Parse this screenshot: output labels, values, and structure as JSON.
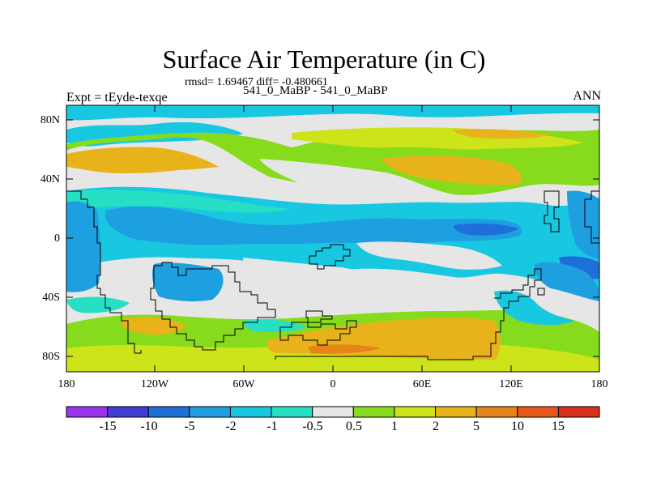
{
  "title": "Surface Air Temperature (in C)",
  "stats": "rmsd= 1.69467 diff= -0.480661",
  "experiment": "Expt = tEyde-texqe",
  "runs": "541_0_MaBP - 541_0_MaBP",
  "season": "ANN",
  "y_ticks": [
    "80N",
    "40N",
    "0",
    "40S",
    "80S"
  ],
  "x_ticks": [
    "180",
    "120W",
    "60W",
    "0",
    "60E",
    "120E",
    "180"
  ],
  "colorbar": {
    "labels": [
      "-15",
      "-10",
      "-5",
      "-2",
      "-1",
      "-0.5",
      "0.5",
      "1",
      "2",
      "5",
      "10",
      "15"
    ],
    "colors": [
      "#9933ee",
      "#3f3fd6",
      "#1f6fd9",
      "#1e9fe0",
      "#18c8e0",
      "#26dfc4",
      "#e6e6e6",
      "#86dc1c",
      "#cde41a",
      "#e8b21a",
      "#e6841a",
      "#e6581a",
      "#d8301a"
    ]
  },
  "map_colors": {
    "neutral": "#e6e6e6",
    "cool_light": "#26dfc4",
    "cool": "#18c8e0",
    "cool_mid": "#1e9fe0",
    "cool_deep": "#1f6fd9",
    "warm_light": "#86dc1c",
    "warm": "#cde41a",
    "warm_mid": "#e8b21a",
    "warm_deep": "#e6841a"
  }
}
